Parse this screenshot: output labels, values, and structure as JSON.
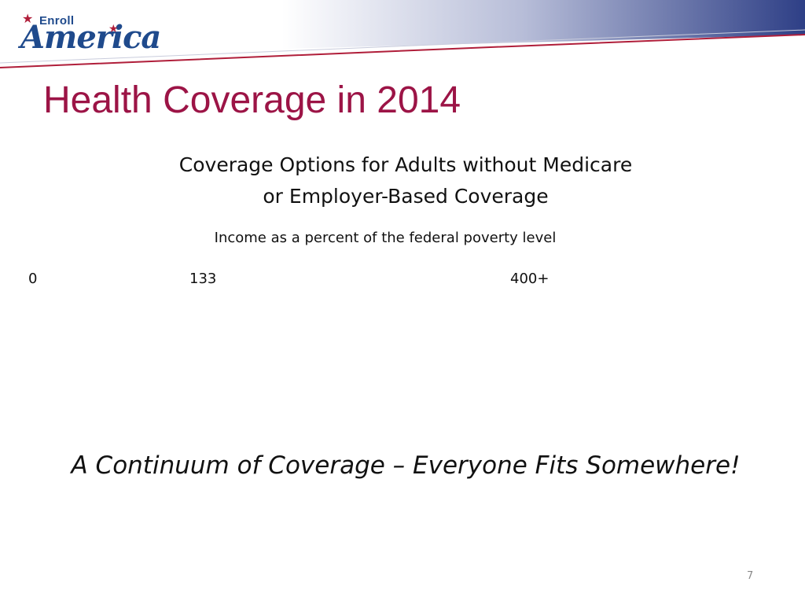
{
  "header": {
    "logo": {
      "word1": "Enroll",
      "word2": "America"
    }
  },
  "slide": {
    "title": "Health Coverage in 2014",
    "subtitle_line1": "Coverage Options for Adults without Medicare",
    "subtitle_line2": "or Employer-Based Coverage",
    "axis_label": "Income as a percent of the federal poverty level",
    "ticks": [
      "0",
      "133",
      "400+"
    ],
    "tagline": "A Continuum of Coverage – Everyone Fits Somewhere!",
    "page_number": "7"
  },
  "colors": {
    "title": "#9c1446",
    "header_gradient_start": "#ffffff",
    "header_gradient_end": "#2e3f86",
    "header_rule": "#b01e3a",
    "logo_blue": "#1f4a8c"
  }
}
